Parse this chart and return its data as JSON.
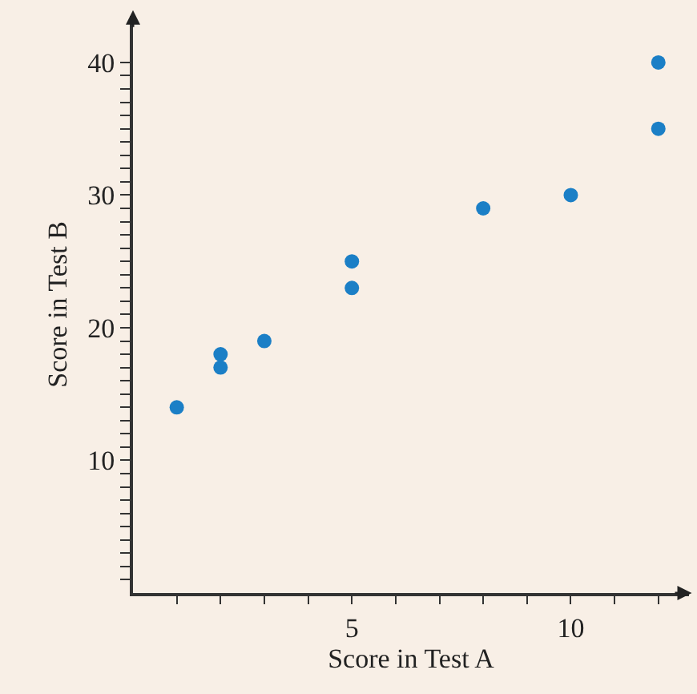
{
  "chart_data": {
    "type": "scatter",
    "xlabel": "Score in Test A",
    "ylabel": "Score in Test B",
    "x": [
      1,
      2,
      2,
      3,
      5,
      5,
      8,
      10,
      12,
      12
    ],
    "series": [
      {
        "color": "#1b7fc6",
        "values": [
          14,
          17,
          18,
          19,
          23,
          25,
          29,
          30,
          35,
          40
        ]
      }
    ],
    "xlim": [
      0,
      12.7
    ],
    "ylim": [
      0,
      43.5
    ],
    "xticks": [
      {
        "value": 1,
        "label": null
      },
      {
        "value": 2,
        "label": null
      },
      {
        "value": 3,
        "label": null
      },
      {
        "value": 4,
        "label": null
      },
      5,
      {
        "value": 6,
        "label": null
      },
      {
        "value": 7,
        "label": null
      },
      {
        "value": 8,
        "label": null
      },
      {
        "value": 9,
        "label": null
      },
      10,
      {
        "value": 11,
        "label": null
      },
      {
        "value": 12,
        "label": null
      }
    ],
    "yticks": [
      {
        "value": 1,
        "label": null
      },
      {
        "value": 2,
        "label": null
      },
      {
        "value": 3,
        "label": null
      },
      {
        "value": 4,
        "label": null
      },
      {
        "value": 5,
        "label": null
      },
      {
        "value": 6,
        "label": null
      },
      {
        "value": 7,
        "label": null
      },
      {
        "value": 8,
        "label": null
      },
      {
        "value": 9,
        "label": null
      },
      10,
      {
        "value": 11,
        "label": null
      },
      {
        "value": 12,
        "label": null
      },
      {
        "value": 13,
        "label": null
      },
      {
        "value": 14,
        "label": null
      },
      {
        "value": 15,
        "label": null
      },
      {
        "value": 16,
        "label": null
      },
      {
        "value": 17,
        "label": null
      },
      {
        "value": 18,
        "label": null
      },
      {
        "value": 19,
        "label": null
      },
      20,
      {
        "value": 21,
        "label": null
      },
      {
        "value": 22,
        "label": null
      },
      {
        "value": 23,
        "label": null
      },
      {
        "value": 24,
        "label": null
      },
      {
        "value": 25,
        "label": null
      },
      {
        "value": 26,
        "label": null
      },
      {
        "value": 27,
        "label": null
      },
      {
        "value": 28,
        "label": null
      },
      {
        "value": 29,
        "label": null
      },
      30,
      {
        "value": 31,
        "label": null
      },
      {
        "value": 32,
        "label": null
      },
      {
        "value": 33,
        "label": null
      },
      {
        "value": 34,
        "label": null
      },
      {
        "value": 35,
        "label": null
      },
      {
        "value": 36,
        "label": null
      },
      {
        "value": 37,
        "label": null
      },
      {
        "value": 38,
        "label": null
      },
      {
        "value": 39,
        "label": null
      },
      40
    ],
    "marker": "circle"
  }
}
